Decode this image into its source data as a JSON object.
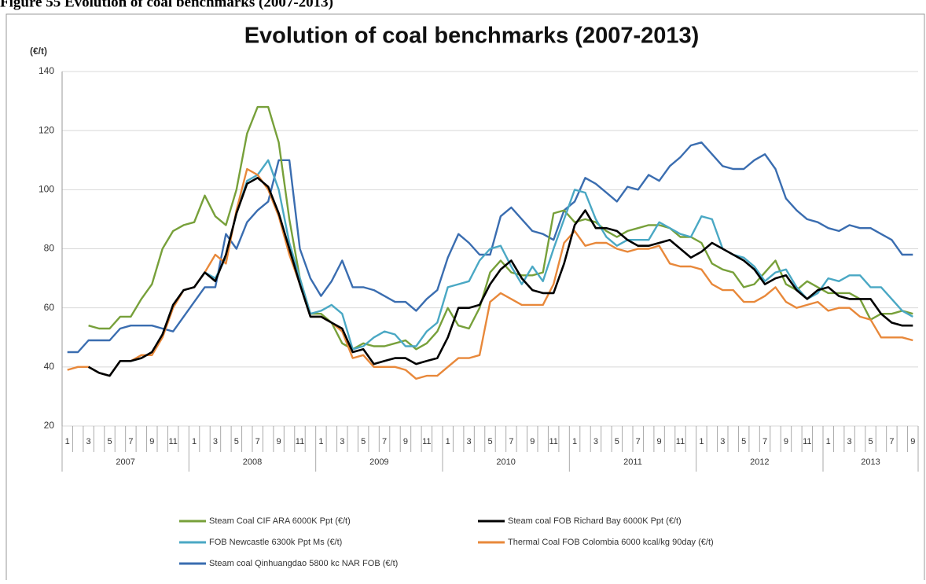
{
  "caption": "Figure 55 Evolution of coal benchmarks (2007-2013)",
  "chart_data": {
    "type": "line",
    "title": "Evolution of coal benchmarks (2007-2013)",
    "y_label": "(€/t)",
    "categories": [
      "1",
      null,
      "3",
      null,
      "5",
      null,
      "7",
      null,
      "9",
      null,
      "11",
      null,
      "1",
      null,
      "3",
      null,
      "5",
      null,
      "7",
      null,
      "9",
      null,
      "11",
      null,
      "1",
      null,
      "3",
      null,
      "5",
      null,
      "7",
      null,
      "9",
      null,
      "11",
      null,
      "1",
      null,
      "3",
      null,
      "5",
      null,
      "7",
      null,
      "9",
      null,
      "11",
      null,
      "1",
      null,
      "3",
      null,
      "5",
      null,
      "7",
      null,
      "9",
      null,
      "11",
      null,
      "1",
      null,
      "3",
      null,
      "5",
      null,
      "7",
      null,
      "9",
      null,
      "11",
      null,
      "1",
      null,
      "3",
      null,
      "5",
      null,
      "7",
      null,
      "9"
    ],
    "year_labels": [
      "2007",
      "2008",
      "2009",
      "2010",
      "2011",
      "2012",
      "2013"
    ],
    "ylim": [
      20,
      140
    ],
    "yticks": [
      20,
      40,
      60,
      80,
      100,
      120,
      140
    ],
    "grid": true,
    "series": [
      {
        "name": "Steam Coal CIF ARA 6000K Ppt (€/t)",
        "color": "#77a03a",
        "values": [
          null,
          null,
          54,
          53,
          53,
          57,
          57,
          63,
          68,
          80,
          86,
          88,
          89,
          98,
          91,
          88,
          100,
          119,
          128,
          128,
          116,
          90,
          70,
          58,
          58,
          55,
          48,
          46,
          48,
          47,
          47,
          48,
          49,
          46,
          48,
          52,
          60,
          54,
          53,
          60,
          72,
          76,
          72,
          71,
          71,
          72,
          92,
          93,
          89,
          90,
          89,
          86,
          84,
          86,
          87,
          88,
          88,
          87,
          84,
          84,
          82,
          75,
          73,
          72,
          67,
          68,
          72,
          76,
          68,
          66,
          69,
          67,
          65,
          65,
          65,
          63,
          56,
          58,
          58,
          59,
          58
        ]
      },
      {
        "name": "Steam coal FOB Richard Bay 6000K Ppt (€/t)",
        "color": "#000000",
        "values": [
          null,
          null,
          40,
          38,
          37,
          42,
          42,
          43,
          45,
          51,
          61,
          66,
          67,
          72,
          69,
          78,
          92,
          102,
          104,
          101,
          92,
          80,
          68,
          57,
          57,
          55,
          53,
          45,
          46,
          41,
          42,
          43,
          43,
          41,
          42,
          43,
          50,
          60,
          60,
          61,
          68,
          73,
          76,
          70,
          66,
          65,
          65,
          75,
          88,
          93,
          87,
          87,
          86,
          83,
          81,
          81,
          82,
          83,
          80,
          77,
          79,
          82,
          80,
          78,
          76,
          73,
          68,
          70,
          71,
          66,
          63,
          66,
          67,
          64,
          63,
          63,
          63,
          58,
          55,
          54,
          54
        ]
      },
      {
        "name": "FOB Newcastle 6300k Ppt Ms (€/t)",
        "color": "#4aa8c4",
        "values": [
          null,
          null,
          40,
          38,
          37,
          42,
          42,
          43,
          45,
          51,
          61,
          66,
          67,
          72,
          70,
          77,
          92,
          103,
          105,
          110,
          100,
          82,
          70,
          58,
          59,
          61,
          58,
          46,
          47,
          50,
          52,
          51,
          47,
          47,
          52,
          55,
          67,
          68,
          69,
          76,
          80,
          81,
          74,
          68,
          74,
          69,
          80,
          90,
          100,
          99,
          90,
          84,
          81,
          83,
          83,
          83,
          89,
          87,
          85,
          84,
          91,
          90,
          80,
          78,
          77,
          74,
          69,
          72,
          73,
          67,
          63,
          65,
          70,
          69,
          71,
          71,
          67,
          67,
          63,
          59,
          57
        ]
      },
      {
        "name": "Thermal Coal FOB Colombia 6000 kcal/kg 90day (€/t)",
        "color": "#e8883a",
        "values": [
          39,
          40,
          40,
          38,
          37,
          42,
          42,
          44,
          44,
          50,
          60,
          66,
          67,
          72,
          78,
          75,
          93,
          107,
          105,
          100,
          91,
          78,
          68,
          57,
          57,
          55,
          52,
          43,
          44,
          40,
          40,
          40,
          39,
          36,
          37,
          37,
          40,
          43,
          43,
          44,
          62,
          65,
          63,
          61,
          61,
          61,
          68,
          82,
          86,
          81,
          82,
          82,
          80,
          79,
          80,
          80,
          81,
          75,
          74,
          74,
          73,
          68,
          66,
          66,
          62,
          62,
          64,
          67,
          62,
          60,
          61,
          62,
          59,
          60,
          60,
          57,
          56,
          50,
          50,
          50,
          49
        ]
      },
      {
        "name": "Steam coal Qinhuangdao 5800 kc NAR FOB  (€/t)",
        "color": "#3a6db0",
        "values": [
          45,
          45,
          49,
          49,
          49,
          53,
          54,
          54,
          54,
          53,
          52,
          57,
          62,
          67,
          67,
          85,
          80,
          89,
          93,
          96,
          110,
          110,
          80,
          70,
          64,
          69,
          76,
          67,
          67,
          66,
          64,
          62,
          62,
          59,
          63,
          66,
          77,
          85,
          82,
          78,
          78,
          91,
          94,
          90,
          86,
          85,
          83,
          93,
          96,
          104,
          102,
          99,
          96,
          101,
          100,
          105,
          103,
          108,
          111,
          115,
          116,
          112,
          108,
          107,
          107,
          110,
          112,
          107,
          97,
          93,
          90,
          89,
          87,
          86,
          88,
          87,
          87,
          85,
          83,
          78,
          78
        ]
      }
    ]
  }
}
